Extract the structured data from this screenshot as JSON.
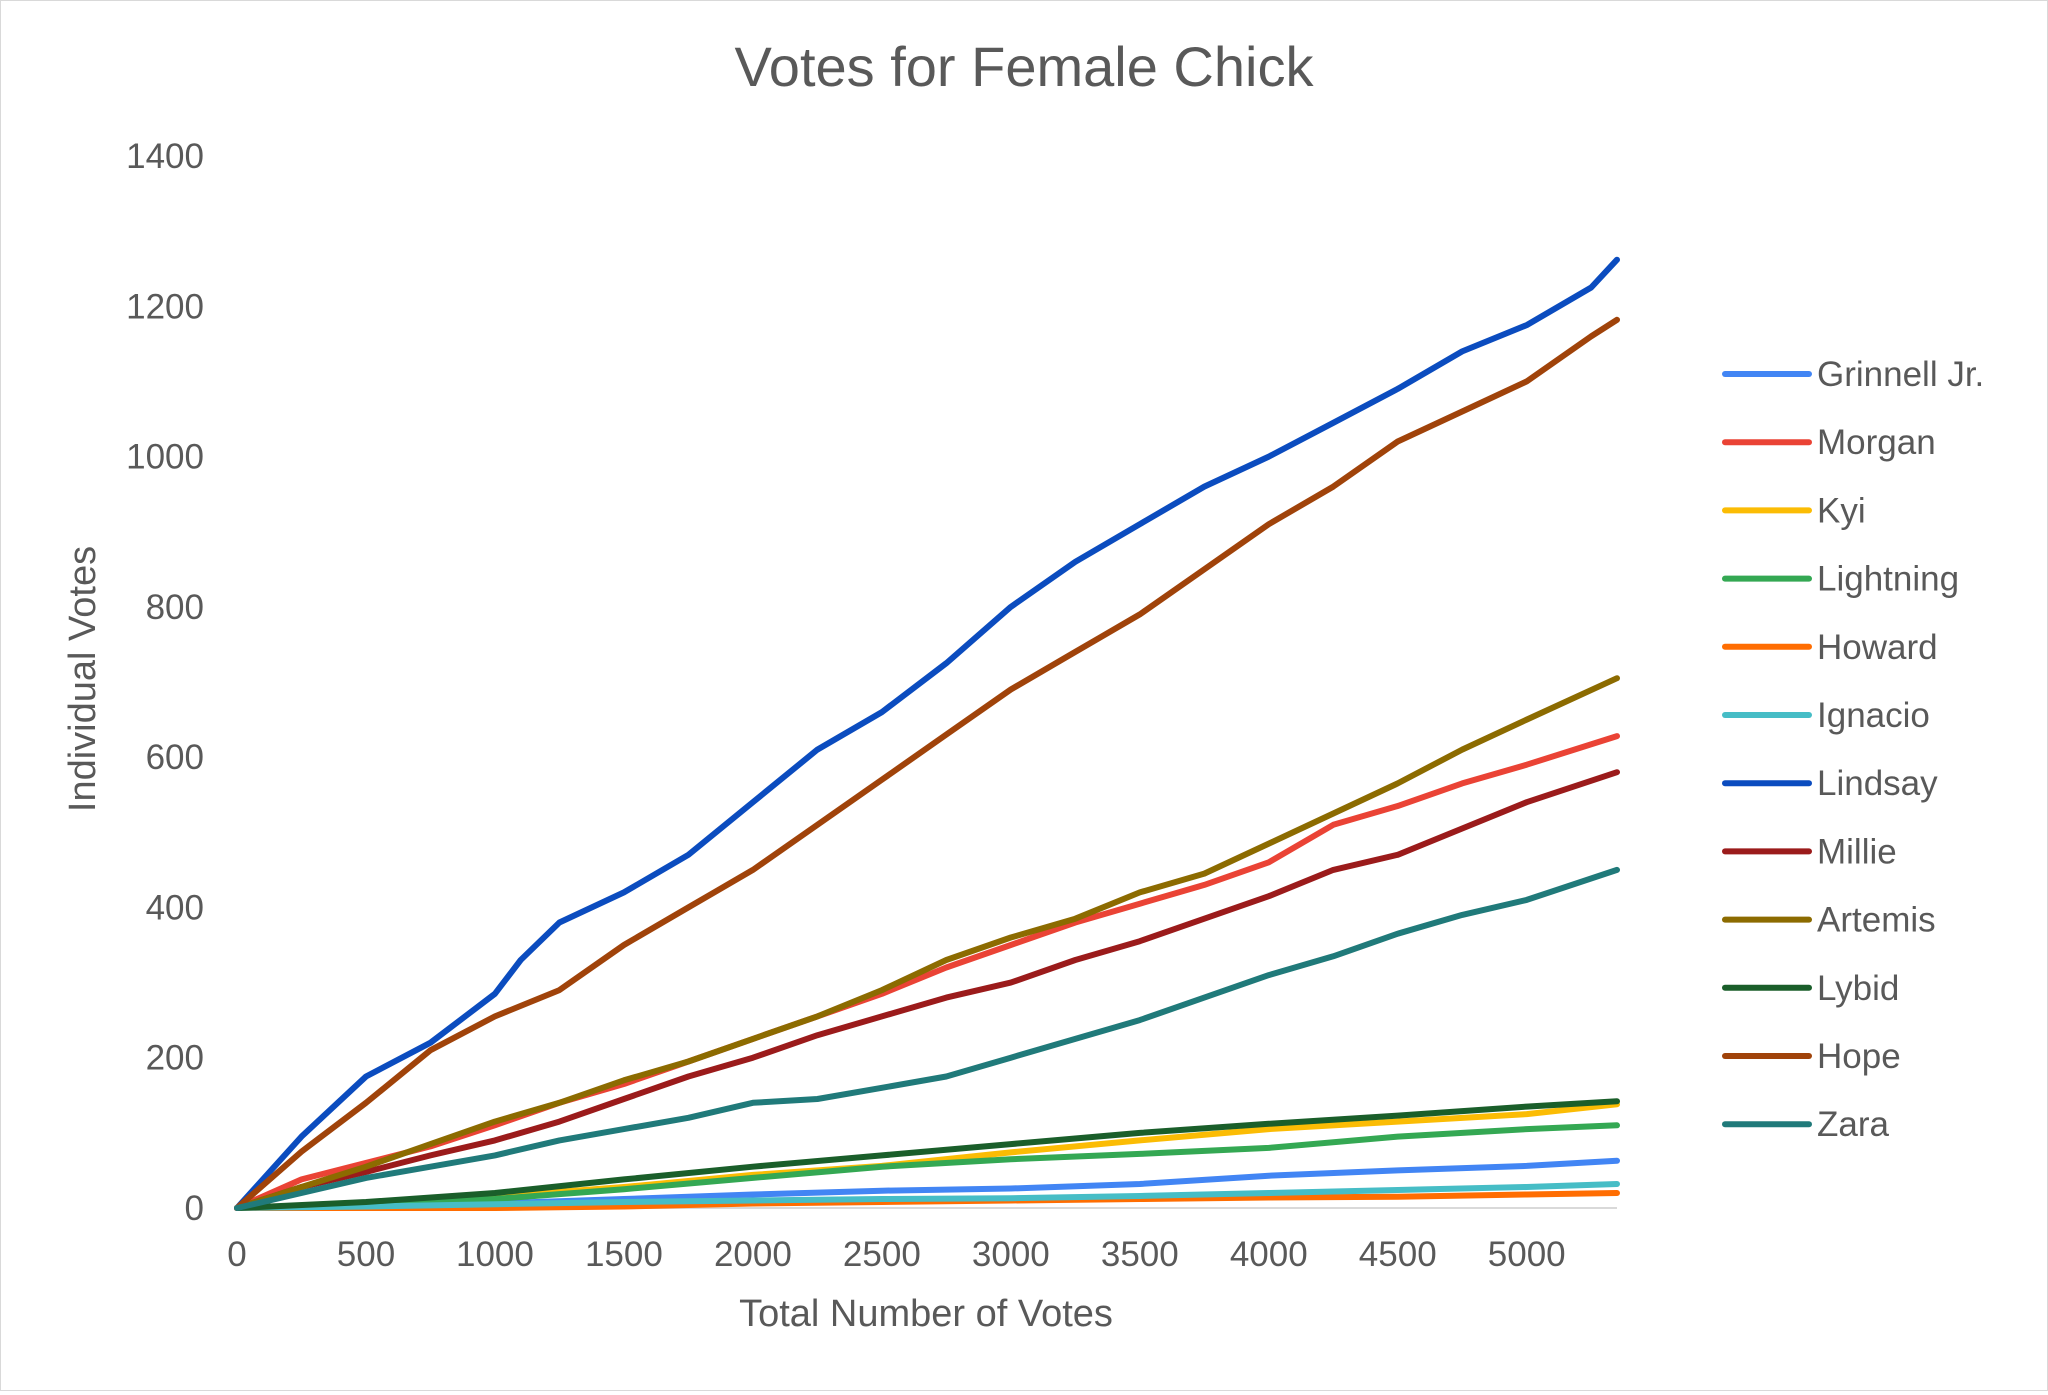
{
  "chart_data": {
    "type": "line",
    "title": "Votes for Female Chick",
    "xlabel": "Total Number of Votes",
    "ylabel": "Individual Votes",
    "xlim": [
      0,
      5350
    ],
    "ylim": [
      0,
      1400
    ],
    "xticks": [
      "0",
      "500",
      "1000",
      "1500",
      "2000",
      "2500",
      "3000",
      "3500",
      "4000",
      "4500",
      "5000"
    ],
    "yticks": [
      "0",
      "200",
      "400",
      "600",
      "800",
      "1000",
      "1200",
      "1400"
    ],
    "grid": false,
    "legend": "right",
    "series": [
      {
        "name": "Grinnell Jr.",
        "color": "#4285f4",
        "x": [
          0,
          500,
          1000,
          1500,
          2000,
          2500,
          3000,
          3500,
          4000,
          4500,
          5000,
          5350
        ],
        "y": [
          0,
          2,
          6,
          12,
          18,
          23,
          26,
          32,
          43,
          50,
          56,
          63
        ]
      },
      {
        "name": "Morgan",
        "color": "#ea4335",
        "x": [
          0,
          250,
          500,
          750,
          1000,
          1250,
          1500,
          1750,
          2000,
          2250,
          2500,
          2750,
          3000,
          3250,
          3500,
          3750,
          4000,
          4250,
          4500,
          4750,
          5000,
          5350
        ],
        "y": [
          0,
          38,
          60,
          82,
          110,
          140,
          165,
          195,
          225,
          255,
          285,
          320,
          350,
          380,
          405,
          430,
          460,
          510,
          535,
          565,
          590,
          628
        ]
      },
      {
        "name": "Kyi",
        "color": "#fbbc04",
        "x": [
          0,
          500,
          1000,
          1500,
          2000,
          2500,
          3000,
          3500,
          4000,
          4500,
          5000,
          5350
        ],
        "y": [
          0,
          6,
          15,
          28,
          44,
          56,
          74,
          90,
          105,
          115,
          125,
          138
        ]
      },
      {
        "name": "Lightning",
        "color": "#34a853",
        "x": [
          0,
          500,
          1000,
          1500,
          2000,
          2500,
          3000,
          3500,
          4000,
          4500,
          5000,
          5350
        ],
        "y": [
          0,
          5,
          12,
          25,
          40,
          55,
          65,
          72,
          80,
          95,
          105,
          110
        ]
      },
      {
        "name": "Howard",
        "color": "#ff6d01",
        "x": [
          0,
          1000,
          1500,
          2000,
          2500,
          3000,
          3500,
          4000,
          4500,
          5000,
          5350
        ],
        "y": [
          0,
          0,
          2,
          6,
          8,
          10,
          12,
          14,
          15,
          18,
          20
        ]
      },
      {
        "name": "Ignacio",
        "color": "#46bdc6",
        "x": [
          0,
          500,
          1000,
          1500,
          2000,
          2500,
          3000,
          3500,
          4000,
          4500,
          5000,
          5350
        ],
        "y": [
          0,
          2,
          5,
          8,
          10,
          12,
          13,
          16,
          20,
          24,
          28,
          32
        ]
      },
      {
        "name": "Lindsay",
        "color": "#0b4cbf",
        "x": [
          0,
          250,
          500,
          750,
          1000,
          1100,
          1250,
          1500,
          1750,
          2000,
          2250,
          2500,
          2750,
          3000,
          3250,
          3500,
          3750,
          4000,
          4250,
          4500,
          4750,
          5000,
          5250,
          5350
        ],
        "y": [
          0,
          95,
          175,
          220,
          285,
          330,
          380,
          420,
          470,
          540,
          610,
          660,
          725,
          800,
          860,
          910,
          960,
          1000,
          1045,
          1090,
          1140,
          1175,
          1225,
          1262
        ]
      },
      {
        "name": "Millie",
        "color": "#9b1b1b",
        "x": [
          0,
          250,
          500,
          750,
          1000,
          1250,
          1500,
          1750,
          2000,
          2250,
          2500,
          2750,
          3000,
          3250,
          3500,
          3750,
          4000,
          4250,
          4500,
          4750,
          5000,
          5350
        ],
        "y": [
          0,
          28,
          48,
          70,
          90,
          115,
          145,
          175,
          200,
          230,
          255,
          280,
          300,
          330,
          355,
          385,
          415,
          450,
          470,
          505,
          540,
          580
        ]
      },
      {
        "name": "Artemis",
        "color": "#8c6b00",
        "x": [
          0,
          250,
          500,
          750,
          1000,
          1250,
          1500,
          1750,
          2000,
          2250,
          2500,
          2750,
          3000,
          3250,
          3500,
          3750,
          4000,
          4250,
          4500,
          4750,
          5000,
          5350
        ],
        "y": [
          0,
          28,
          55,
          85,
          115,
          140,
          170,
          195,
          225,
          255,
          290,
          330,
          360,
          385,
          420,
          445,
          485,
          525,
          565,
          610,
          650,
          705
        ]
      },
      {
        "name": "Lybid",
        "color": "#1a5e2a",
        "x": [
          0,
          500,
          1000,
          1500,
          2000,
          2500,
          3000,
          3500,
          4000,
          4500,
          5000,
          5350
        ],
        "y": [
          0,
          8,
          20,
          38,
          55,
          70,
          85,
          100,
          112,
          123,
          135,
          142
        ]
      },
      {
        "name": "Hope",
        "color": "#a0430a",
        "x": [
          0,
          250,
          500,
          750,
          1000,
          1250,
          1500,
          1750,
          2000,
          2250,
          2500,
          2750,
          3000,
          3250,
          3500,
          3750,
          4000,
          4250,
          4500,
          4750,
          5000,
          5250,
          5350
        ],
        "y": [
          0,
          75,
          140,
          210,
          255,
          290,
          350,
          400,
          450,
          510,
          570,
          630,
          690,
          740,
          790,
          850,
          910,
          960,
          1020,
          1060,
          1100,
          1160,
          1182
        ]
      },
      {
        "name": "Zara",
        "color": "#207a7a",
        "x": [
          0,
          250,
          500,
          750,
          1000,
          1250,
          1500,
          1750,
          2000,
          2250,
          2500,
          2750,
          3000,
          3250,
          3500,
          3750,
          4000,
          4250,
          4500,
          4750,
          5000,
          5350
        ],
        "y": [
          0,
          20,
          40,
          55,
          70,
          90,
          105,
          120,
          140,
          145,
          160,
          175,
          200,
          225,
          250,
          280,
          310,
          335,
          365,
          390,
          410,
          450
        ]
      }
    ]
  }
}
